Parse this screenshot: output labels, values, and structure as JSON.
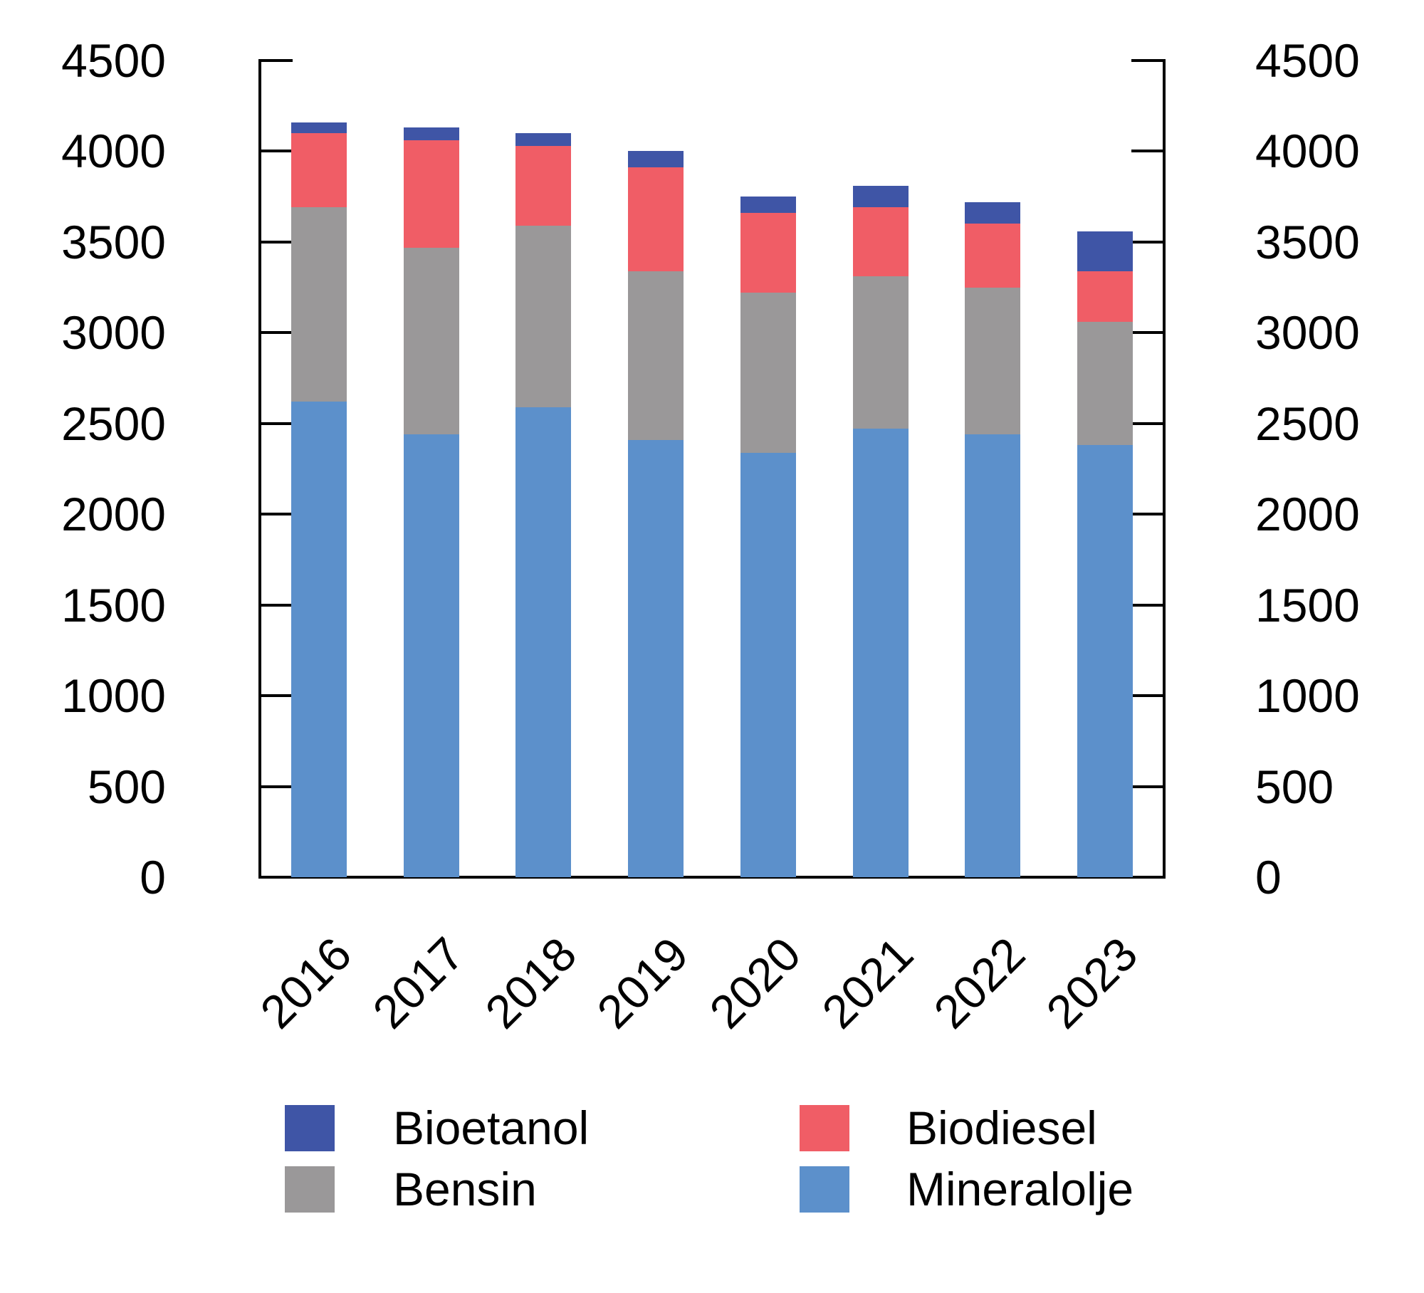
{
  "chart_data": {
    "type": "bar",
    "stacked": true,
    "categories": [
      "2016",
      "2017",
      "2018",
      "2019",
      "2020",
      "2021",
      "2022",
      "2023"
    ],
    "series": [
      {
        "name": "Mineralolje",
        "color": "#5C90CB",
        "values": [
          2620,
          2440,
          2590,
          2410,
          2340,
          2470,
          2440,
          2380
        ]
      },
      {
        "name": "Bensin",
        "color": "#9A9899",
        "values": [
          1070,
          1030,
          1000,
          930,
          880,
          840,
          810,
          680
        ]
      },
      {
        "name": "Biodiesel",
        "color": "#F05D66",
        "values": [
          410,
          590,
          440,
          570,
          440,
          380,
          350,
          280
        ]
      },
      {
        "name": "Bioetanol",
        "color": "#3F55A6",
        "values": [
          60,
          70,
          70,
          90,
          90,
          120,
          120,
          220
        ]
      }
    ],
    "totals": [
      4160,
      4130,
      4100,
      4000,
      3750,
      3810,
      3720,
      3560
    ],
    "ylim": [
      0,
      4500
    ],
    "ytick_interval": 500,
    "yticks": [
      4500,
      4000,
      3500,
      3000,
      2500,
      2000,
      1500,
      1000,
      500,
      0
    ],
    "ytick_labels_left": [
      "4500",
      "4000",
      "3500",
      "3000",
      "2500",
      "2000",
      "1500",
      "1000",
      "500",
      "0"
    ],
    "ytick_labels_right": [
      "4500",
      "4000",
      "3500",
      "3000",
      "2500",
      "2000",
      "1500",
      "1000",
      "500",
      "0"
    ],
    "grid": false,
    "legend": {
      "position": "bottom",
      "entries": [
        {
          "label": "Bioetanol",
          "color": "#3F55A6"
        },
        {
          "label": "Biodiesel",
          "color": "#F05D66"
        },
        {
          "label": "Bensin",
          "color": "#9A9899"
        },
        {
          "label": "Mineralolje",
          "color": "#5C90CB"
        }
      ]
    }
  },
  "colors": {
    "axis": "#000000",
    "text": "#000000",
    "background": "#FFFFFF"
  }
}
